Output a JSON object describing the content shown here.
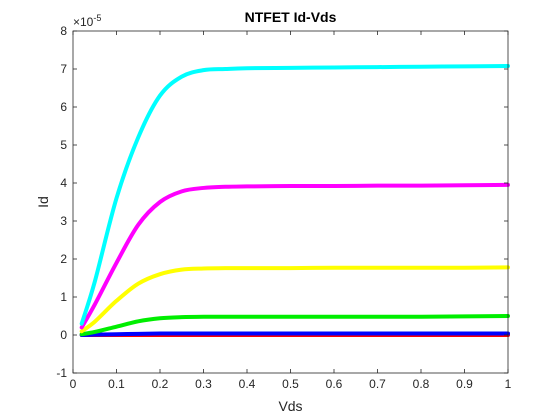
{
  "chart_data": {
    "type": "line",
    "title": "NTFET Id-Vds",
    "xlabel": "Vds",
    "ylabel": "Id",
    "xlim": [
      0,
      1
    ],
    "ylim": [
      -1,
      8
    ],
    "y_multiplier_base": "×10",
    "y_multiplier_exponent": "-5",
    "xticks": [
      "0",
      "0.1",
      "0.2",
      "0.3",
      "0.4",
      "0.5",
      "0.6",
      "0.7",
      "0.8",
      "0.9",
      "1"
    ],
    "yticks": [
      "-1",
      "0",
      "1",
      "2",
      "3",
      "4",
      "5",
      "6",
      "7",
      "8"
    ],
    "grid": false,
    "x": [
      0.02,
      0.05,
      0.1,
      0.15,
      0.2,
      0.25,
      0.3,
      0.35,
      0.4,
      0.5,
      0.6,
      0.7,
      0.8,
      0.9,
      1.0
    ],
    "series": [
      {
        "color": "#ff0000",
        "values": [
          0.0,
          0.0,
          0.0,
          0.0,
          0.0,
          0.0,
          0.0,
          0.0,
          0.0,
          0.0,
          0.0,
          0.0,
          0.0,
          0.0,
          0.0
        ]
      },
      {
        "color": "#0000ff",
        "values": [
          0.0,
          0.01,
          0.02,
          0.03,
          0.04,
          0.04,
          0.04,
          0.04,
          0.04,
          0.04,
          0.04,
          0.04,
          0.04,
          0.04,
          0.04
        ]
      },
      {
        "color": "#00ee00",
        "values": [
          0.02,
          0.08,
          0.22,
          0.36,
          0.44,
          0.47,
          0.48,
          0.48,
          0.48,
          0.48,
          0.48,
          0.48,
          0.48,
          0.49,
          0.5
        ]
      },
      {
        "color": "#ffff00",
        "values": [
          0.1,
          0.35,
          0.9,
          1.35,
          1.6,
          1.72,
          1.75,
          1.76,
          1.76,
          1.76,
          1.77,
          1.77,
          1.77,
          1.77,
          1.78
        ]
      },
      {
        "color": "#ff00ff",
        "values": [
          0.2,
          0.8,
          1.9,
          2.9,
          3.5,
          3.78,
          3.87,
          3.9,
          3.91,
          3.92,
          3.92,
          3.93,
          3.93,
          3.94,
          3.95
        ]
      },
      {
        "color": "#00ffff",
        "values": [
          0.3,
          1.4,
          3.6,
          5.2,
          6.3,
          6.8,
          6.97,
          7.0,
          7.02,
          7.03,
          7.04,
          7.05,
          7.06,
          7.07,
          7.08
        ]
      }
    ]
  }
}
